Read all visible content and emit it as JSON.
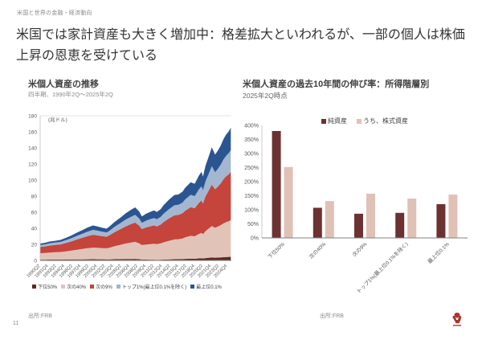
{
  "header": {
    "label": "米国と世界の金融・経済動向"
  },
  "title": {
    "text": "米国では家計資産も大きく増加中：格差拡大といわれるが、一部の個人は株価上昇の恩恵を受けている"
  },
  "footer": {
    "page_number": "11"
  },
  "colors": {
    "accent_red": "#A8352C",
    "axis": "#808080",
    "axis_light": "#bfbfbf",
    "grid": "#dddddd",
    "label": "#595959"
  },
  "chart_data": [
    {
      "type": "area",
      "stacked": true,
      "title": "米個人資産の推移",
      "subtitle": "四半期、1990年2Q～2025年2Q",
      "ylabel": "(兆ドル)",
      "source": "出所:FRB",
      "ylim": [
        0,
        180
      ],
      "ytick_step": 20,
      "xlim": [
        1990.25,
        2025.5
      ],
      "legend_position": "bottom",
      "grid": "top-line-only",
      "x": [
        1990.25,
        1991,
        1992,
        1993,
        1994,
        1995,
        1996,
        1997,
        1998,
        1999,
        2000,
        2000.75,
        2001.5,
        2002.5,
        2003,
        2004,
        2005,
        2006,
        2007,
        2007.75,
        2008.5,
        2009,
        2009.75,
        2010.5,
        2011.25,
        2011.75,
        2012.5,
        2013,
        2014,
        2015,
        2015.75,
        2016.5,
        2017,
        2018,
        2018.75,
        2019.5,
        2020,
        2020.25,
        2020.75,
        2021.25,
        2021.9,
        2022.5,
        2022.9,
        2023.5,
        2024,
        2024.5,
        2025,
        2025.4
      ],
      "series": [
        {
          "name": "下位50%",
          "color": "#5F2A24",
          "values": [
            0.9,
            0.95,
            1.0,
            1.05,
            1.1,
            1.15,
            1.2,
            1.3,
            1.35,
            1.4,
            1.5,
            1.45,
            1.4,
            1.3,
            1.35,
            1.5,
            1.6,
            1.7,
            1.8,
            1.9,
            1.5,
            1.1,
            1.0,
            0.9,
            0.9,
            0.85,
            0.9,
            1.0,
            1.2,
            1.5,
            1.6,
            1.7,
            1.9,
            2.2,
            2.1,
            2.5,
            2.7,
            2.4,
            2.9,
            3.2,
            3.6,
            3.4,
            3.5,
            3.8,
            4.0,
            4.2,
            4.4,
            4.5
          ]
        },
        {
          "name": "次の40%",
          "color": "#E2C3B8",
          "values": [
            8.0,
            8.3,
            8.8,
            9.1,
            9.4,
            10.2,
            11.0,
            12.0,
            12.9,
            13.8,
            14.4,
            14.2,
            14.0,
            13.8,
            14.5,
            16.3,
            17.8,
            19.3,
            20.5,
            21.2,
            19.8,
            18.0,
            18.8,
            19.4,
            19.9,
            19.4,
            20.3,
            21.5,
            23.2,
            24.6,
            24.8,
            25.6,
            26.8,
            28.4,
            27.9,
            30.4,
            31.6,
            30.2,
            33.6,
            36.0,
            39.2,
            37.2,
            38.2,
            39.9,
            41.9,
            43.3,
            44.3,
            45.6
          ]
        },
        {
          "name": "次の9%",
          "color": "#C5443C",
          "values": [
            7.8,
            8.1,
            8.7,
            9.0,
            9.4,
            10.3,
            11.4,
            12.7,
            13.8,
            15.1,
            16.0,
            15.6,
            15.0,
            14.4,
            15.3,
            17.5,
            19.3,
            21.3,
            22.9,
            24.0,
            22.1,
            19.9,
            21.2,
            22.1,
            22.8,
            22.1,
            23.5,
            25.3,
            27.9,
            30.0,
            30.2,
            31.4,
            33.2,
            35.7,
            35.0,
            38.6,
            40.4,
            38.2,
            43.2,
            46.8,
            51.5,
            47.9,
            49.3,
            51.8,
            54.7,
            56.9,
            58.3,
            60.1
          ]
        },
        {
          "name": "トップ1%(最上位0.1%を除く)",
          "color": "#A3B7D1",
          "values": [
            2.4,
            2.5,
            2.8,
            3.0,
            3.1,
            3.5,
            4.0,
            4.5,
            5.0,
            5.6,
            6.1,
            5.9,
            5.6,
            5.3,
            5.7,
            6.7,
            7.5,
            8.4,
            9.1,
            9.6,
            8.8,
            7.8,
            8.4,
            8.8,
            9.2,
            8.9,
            9.5,
            10.3,
            11.5,
            12.5,
            12.6,
            13.2,
            14.1,
            15.3,
            15.0,
            16.7,
            17.5,
            16.5,
            18.9,
            20.6,
            22.9,
            21.2,
            21.9,
            23.1,
            24.5,
            25.5,
            26.2,
            27.1
          ]
        },
        {
          "name": "最上位0.1%",
          "color": "#2A5591",
          "values": [
            1.9,
            2.0,
            2.2,
            2.3,
            2.5,
            2.9,
            3.4,
            4.0,
            4.5,
            5.1,
            5.5,
            5.3,
            5.0,
            4.7,
            5.2,
            6.0,
            6.8,
            7.8,
            8.7,
            9.3,
            8.8,
            8.0,
            8.6,
            9.0,
            9.4,
            9.1,
            9.8,
            10.6,
            11.8,
            12.8,
            12.9,
            13.6,
            14.5,
            15.7,
            15.4,
            17.2,
            18.0,
            17.0,
            19.5,
            21.2,
            23.6,
            21.9,
            22.5,
            23.8,
            25.2,
            26.3,
            27.0,
            27.9
          ]
        }
      ],
      "x_tick_values": [
        1990.25,
        1991.75,
        1993.25,
        1994.75,
        1996.25,
        1997.75,
        1999.25,
        2000.75,
        2002.25,
        2003.75,
        2005.25,
        2006.75,
        2008.25,
        2009.75,
        2011.25,
        2012.75,
        2014.25,
        2015.75,
        2017.25,
        2018.75,
        2020.25,
        2021.75,
        2023.25,
        2024.75
      ],
      "x_tick_labels": [
        "1990Q2",
        "1991Q4",
        "1993Q2",
        "1994Q4",
        "1996Q2",
        "1997Q4",
        "1999Q2",
        "2000Q4",
        "2002Q2",
        "2003Q4",
        "2005Q2",
        "2006Q4",
        "2008Q2",
        "2009Q4",
        "2011Q2",
        "2012Q4",
        "2014Q2",
        "2015Q4",
        "2017Q2",
        "2018Q4",
        "2020Q2",
        "2021Q4",
        "2023Q2",
        "2024Q4"
      ]
    },
    {
      "type": "bar",
      "title": "米個人資産の過去10年間の伸び率：所得階層別",
      "subtitle": "2025年2Q時点",
      "source": "出所:FRB",
      "ylim": [
        0,
        400
      ],
      "ytick_step": 50,
      "y_suffix": "%",
      "legend_position": "top",
      "grid": "off",
      "categories": [
        "下位50%",
        "次の40%",
        "次の9%",
        "トップ1%(最上位0.1%を除く)",
        "最上位0.1%"
      ],
      "series": [
        {
          "name": "純資産",
          "color": "#6B3231",
          "values": [
            380,
            107,
            86,
            89,
            120
          ]
        },
        {
          "name": "うち、株式資産",
          "color": "#DFC1B6",
          "values": [
            252,
            131,
            157,
            140,
            154
          ]
        }
      ]
    }
  ]
}
